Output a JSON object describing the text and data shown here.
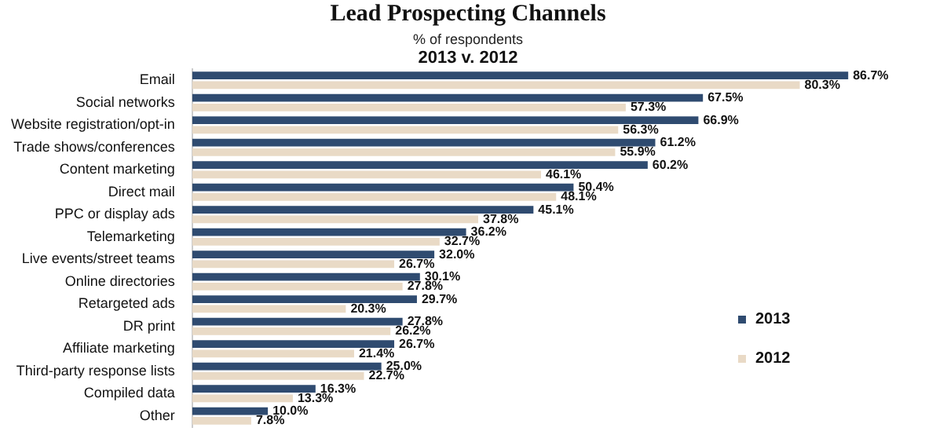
{
  "chart_data": {
    "type": "bar",
    "orientation": "horizontal",
    "title": "Lead Prospecting Channels",
    "subtitle": "% of respondents",
    "annotations": [
      "2013 v. 2012"
    ],
    "categories": [
      "Email",
      "Social networks",
      "Website registration/opt-in",
      "Trade shows/conferences",
      "Content marketing",
      "Direct mail",
      "PPC or display ads",
      "Telemarketing",
      "Live events/street teams",
      "Online directories",
      "Retargeted ads",
      "DR print",
      "Affiliate marketing",
      "Third-party response lists",
      "Compiled data",
      "Other"
    ],
    "series": [
      {
        "name": "2013",
        "color": "#2f4b70",
        "values": [
          86.7,
          67.5,
          66.9,
          61.2,
          60.2,
          50.4,
          45.1,
          36.2,
          32.0,
          30.1,
          29.7,
          27.8,
          26.7,
          25.0,
          16.3,
          10.0
        ],
        "value_labels": [
          "86.7%",
          "67.5%",
          "66.9%",
          "61.2%",
          "60.2%",
          "50.4%",
          "45.1%",
          "36.2%",
          "32.0%",
          "30.1%",
          "29.7%",
          "27.8%",
          "26.7%",
          "25.0%",
          "16.3%",
          "10.0%"
        ]
      },
      {
        "name": "2012",
        "color": "#e9dac6",
        "values": [
          80.3,
          57.3,
          56.3,
          55.9,
          46.1,
          48.1,
          37.8,
          32.7,
          26.7,
          27.8,
          20.3,
          26.2,
          21.4,
          22.7,
          13.3,
          7.8
        ],
        "value_labels": [
          "80.3%",
          "57.3%",
          "56.3%",
          "55.9%",
          "46.1%",
          "48.1%",
          "37.8%",
          "32.7%",
          "26.7%",
          "27.8%",
          "20.3%",
          "26.2%",
          "21.4%",
          "22.7%",
          "13.3%",
          "7.8%"
        ]
      }
    ],
    "legend": "bottom right"
  }
}
